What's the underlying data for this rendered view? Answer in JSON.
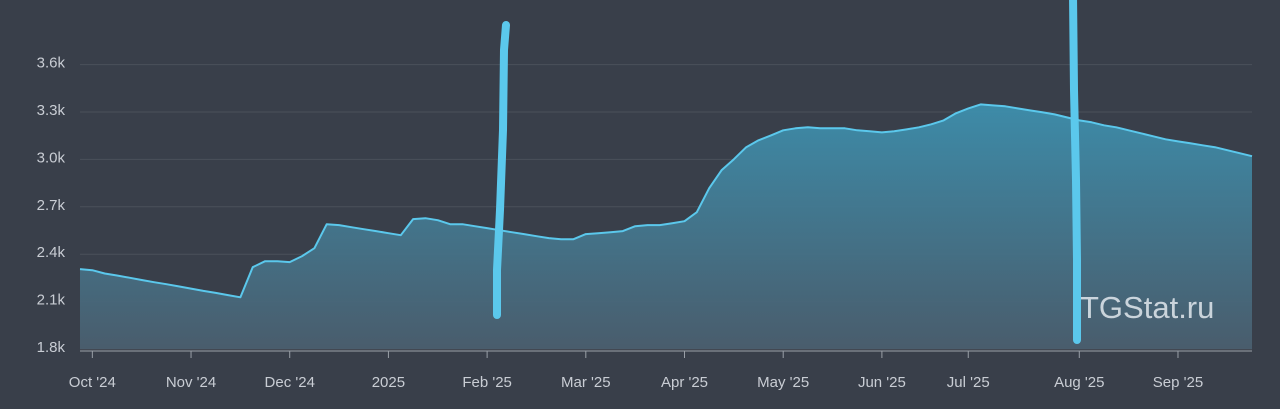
{
  "chart_data": {
    "type": "area",
    "watermark": "TGStat.ru",
    "categories": [
      null,
      "Oct '24",
      null,
      null,
      null,
      null,
      null,
      null,
      null,
      "Nov '24",
      null,
      null,
      null,
      null,
      null,
      null,
      null,
      "Dec '24",
      null,
      null,
      null,
      null,
      null,
      null,
      null,
      "2025",
      null,
      null,
      null,
      null,
      null,
      null,
      null,
      "Feb '25",
      null,
      null,
      null,
      null,
      null,
      null,
      null,
      "Mar '25",
      null,
      null,
      null,
      null,
      null,
      null,
      null,
      "Apr '25",
      null,
      null,
      null,
      null,
      null,
      null,
      null,
      "May '25",
      null,
      null,
      null,
      null,
      null,
      null,
      null,
      "Jun '25",
      null,
      null,
      null,
      null,
      null,
      null,
      "Jul '25",
      null,
      null,
      null,
      null,
      null,
      null,
      null,
      null,
      "Aug '25",
      null,
      null,
      null,
      null,
      null,
      null,
      null,
      "Sep '25",
      null,
      null,
      null,
      null,
      null,
      null
    ],
    "values": [
      2306,
      2299,
      2278,
      2265,
      2251,
      2237,
      2223,
      2210,
      2196,
      2182,
      2168,
      2155,
      2141,
      2127,
      2318,
      2356,
      2356,
      2350,
      2388,
      2438,
      2590,
      2584,
      2571,
      2558,
      2546,
      2533,
      2520,
      2622,
      2628,
      2615,
      2590,
      2590,
      2577,
      2565,
      2552,
      2539,
      2527,
      2514,
      2502,
      2495,
      2495,
      2527,
      2533,
      2539,
      2546,
      2577,
      2584,
      2584,
      2596,
      2609,
      2666,
      2818,
      2931,
      3001,
      3077,
      3121,
      3152,
      3184,
      3197,
      3203,
      3197,
      3197,
      3197,
      3184,
      3178,
      3171,
      3178,
      3190,
      3203,
      3222,
      3247,
      3292,
      3323,
      3348,
      3342,
      3336,
      3323,
      3310,
      3298,
      3285,
      3266,
      3247,
      3235,
      3216,
      3203,
      3184,
      3165,
      3146,
      3127,
      3114,
      3102,
      3089,
      3077,
      3058,
      3039,
      3020
    ],
    "color": "#5bc8ec",
    "ylim": [
      1800,
      3800
    ],
    "yticks": [
      {
        "value": 1800,
        "label": "1.8k"
      },
      {
        "value": 2100,
        "label": "2.1k"
      },
      {
        "value": 2400,
        "label": "2.4k"
      },
      {
        "value": 2700,
        "label": "2.7k"
      },
      {
        "value": 3000,
        "label": "3.0k"
      },
      {
        "value": 3300,
        "label": "3.3k"
      },
      {
        "value": 3600,
        "label": "3.6k"
      }
    ],
    "grid": true
  }
}
